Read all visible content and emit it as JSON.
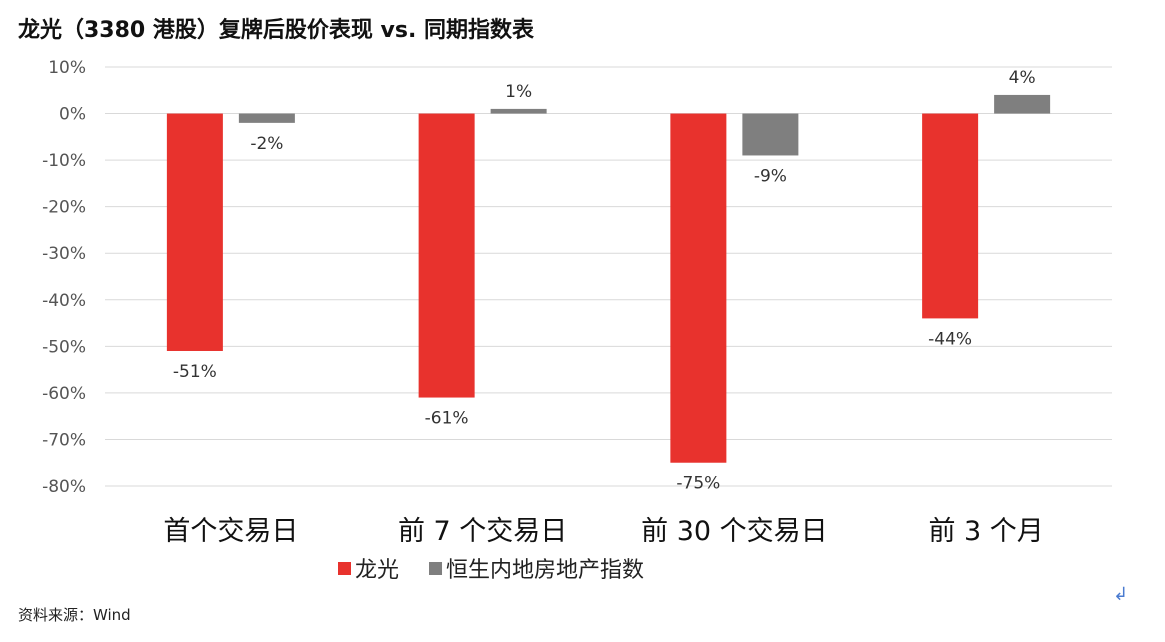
{
  "title": "龙光（3380 港股）复牌后股价表现 vs. 同期指数表",
  "source": "资料来源：Wind",
  "chart_data": {
    "type": "bar",
    "title": "龙光（3380 港股）复牌后股价表现 vs. 同期指数表",
    "categories": [
      "首个交易日",
      "前 7 个交易日",
      "前 30 个交易日",
      "前 3 个月"
    ],
    "series": [
      {
        "name": "龙光",
        "color": "#e8322d",
        "values": [
          -51,
          -61,
          -75,
          -44
        ],
        "labels": [
          "-51%",
          "-61%",
          "-75%",
          "-44%"
        ]
      },
      {
        "name": "恒生内地房地产指数",
        "color": "#7f7f7f",
        "values": [
          -2,
          1,
          -9,
          4
        ],
        "labels": [
          "-2%",
          "1%",
          "-9%",
          "4%"
        ]
      }
    ],
    "ylim": [
      -80,
      10
    ],
    "yticks": [
      10,
      0,
      -10,
      -20,
      -30,
      -40,
      -50,
      -60,
      -70,
      -80
    ],
    "ytick_labels": [
      "10%",
      "0%",
      "-10%",
      "-20%",
      "-30%",
      "-40%",
      "-50%",
      "-60%",
      "-70%",
      "-80%"
    ],
    "grid": true,
    "legend_position": "bottom"
  }
}
